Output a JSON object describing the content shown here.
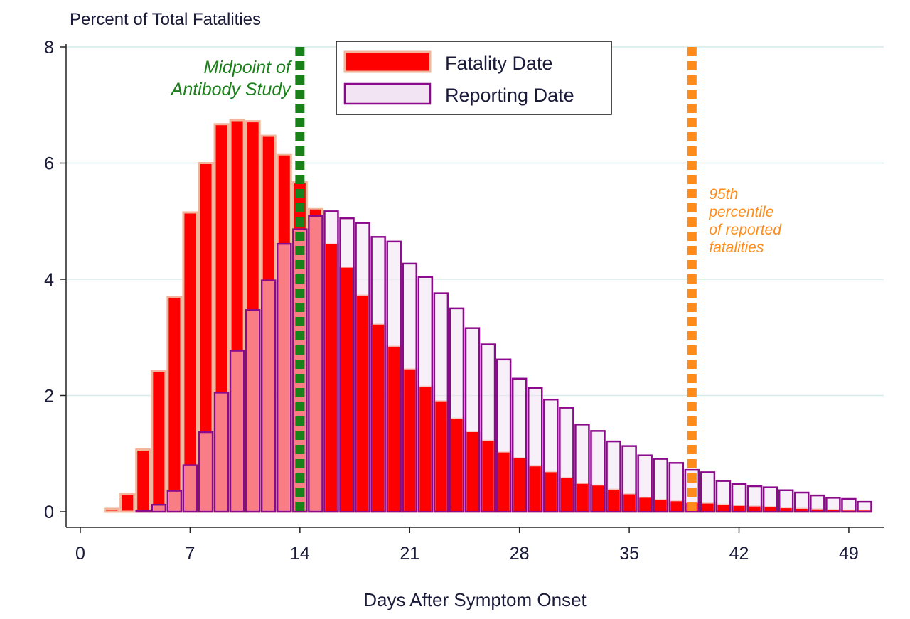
{
  "chart_data": {
    "type": "bar",
    "title": "",
    "ylabel": "Percent of Total Fatalities",
    "xlabel": "Days After Symptom Onset",
    "xlim": [
      -0.5,
      51.5
    ],
    "ylim": [
      0,
      8
    ],
    "xticks": [
      0,
      7,
      14,
      21,
      28,
      35,
      42,
      49
    ],
    "yticks": [
      0,
      2,
      4,
      6,
      8
    ],
    "grid": true,
    "legend_position": "top-center",
    "x": [
      2,
      3,
      4,
      5,
      6,
      7,
      8,
      9,
      10,
      11,
      12,
      13,
      14,
      15,
      16,
      17,
      18,
      19,
      20,
      21,
      22,
      23,
      24,
      25,
      26,
      27,
      28,
      29,
      30,
      31,
      32,
      33,
      34,
      35,
      36,
      37,
      38,
      39,
      40,
      41,
      42,
      43,
      44,
      45,
      46,
      47,
      48,
      49,
      50
    ],
    "series": [
      {
        "name": "Fatality Date",
        "fill": "#ff0000",
        "stroke": "#f2b49a",
        "values": [
          0.05,
          0.3,
          1.07,
          2.42,
          3.7,
          5.15,
          6.0,
          6.67,
          6.74,
          6.72,
          6.47,
          6.15,
          5.67,
          5.22,
          4.6,
          4.2,
          3.72,
          3.22,
          2.84,
          2.45,
          2.15,
          1.9,
          1.6,
          1.37,
          1.22,
          1.02,
          0.92,
          0.78,
          0.68,
          0.58,
          0.48,
          0.45,
          0.38,
          0.3,
          0.24,
          0.2,
          0.18,
          0.15,
          0.14,
          0.12,
          0.1,
          0.09,
          0.08,
          0.06,
          0.05,
          0.04,
          0.03,
          0.02,
          0.02
        ]
      },
      {
        "name": "Reporting Date",
        "fill": "#f2e4f2",
        "stroke": "#8b0a8b",
        "values": [
          0.0,
          0.0,
          0.02,
          0.12,
          0.36,
          0.8,
          1.37,
          2.05,
          2.77,
          3.47,
          3.98,
          4.61,
          4.86,
          5.09,
          5.17,
          5.05,
          4.97,
          4.73,
          4.65,
          4.27,
          4.04,
          3.76,
          3.5,
          3.16,
          2.88,
          2.62,
          2.29,
          2.13,
          1.93,
          1.79,
          1.5,
          1.39,
          1.21,
          1.13,
          0.97,
          0.91,
          0.84,
          0.72,
          0.68,
          0.53,
          0.48,
          0.44,
          0.42,
          0.37,
          0.33,
          0.28,
          0.24,
          0.22,
          0.17
        ]
      }
    ],
    "reference_lines": [
      {
        "name": "Midpoint of Antibody Study",
        "x": 14,
        "color": "#1a801a",
        "label_lines": [
          "Midpoint of",
          "Antibody Study"
        ]
      },
      {
        "name": "95th percentile of reported fatalities",
        "x": 39,
        "color": "#ff8c1a",
        "label_lines": [
          "95th",
          "percentile",
          "of reported",
          "fatalities"
        ]
      }
    ]
  }
}
